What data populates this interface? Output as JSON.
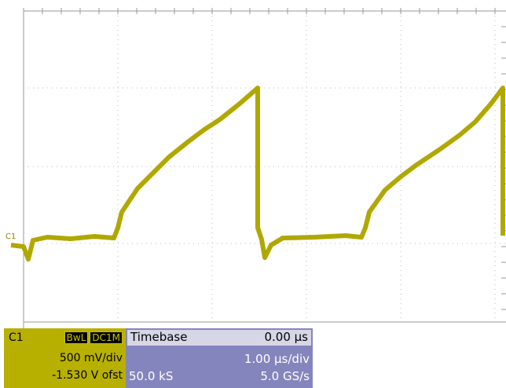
{
  "screen": {
    "trace_label": "C1",
    "channel": {
      "name": "C1",
      "badges": [
        "BwL",
        "DC1M"
      ],
      "scale": "500 mV/div",
      "offset": "-1.530 V ofst"
    },
    "timebase": {
      "title": "Timebase",
      "delay": "0.00 µs",
      "scale": "1.00 µs/div",
      "samples": "50.0 kS",
      "rate": "5.0 GS/s"
    }
  }
}
